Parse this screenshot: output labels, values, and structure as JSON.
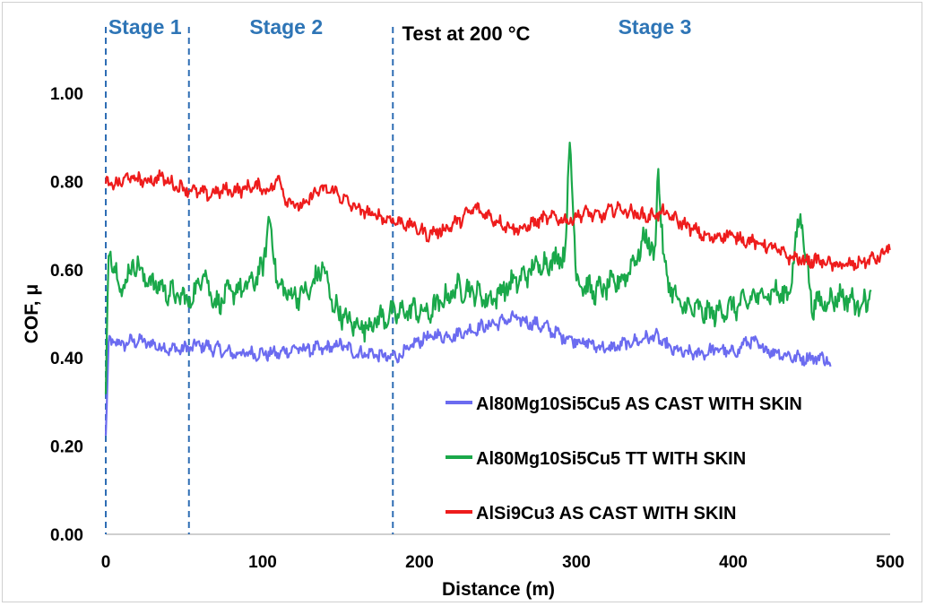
{
  "chart_data": {
    "type": "line",
    "title": "Test at 200 °C",
    "xlabel": "Distance (m)",
    "ylabel": "COF, μ",
    "xlim": [
      0,
      500
    ],
    "ylim": [
      0,
      1.1
    ],
    "x_ticks": [
      0,
      100,
      200,
      300,
      400,
      500
    ],
    "x_tick_labels": [
      "0",
      "100",
      "200",
      "300",
      "400",
      "500"
    ],
    "y_ticks": [
      0,
      0.2,
      0.4,
      0.6,
      0.8,
      1.0
    ],
    "y_tick_labels": [
      "0.00",
      "0.20",
      "0.40",
      "0.60",
      "0.80",
      "1.00"
    ],
    "grid": false,
    "legend_position": "bottom-right",
    "stage_lines": [
      0,
      53,
      183
    ],
    "stages": [
      {
        "label": "Stage 1",
        "x": 25
      },
      {
        "label": "Stage 2",
        "x": 115
      },
      {
        "label": "Stage 3",
        "x": 350
      }
    ],
    "series": [
      {
        "name": "Al80Mg10Si5Cu5 AS CAST WITH SKIN",
        "color": "#6b6bf0",
        "x": [
          0,
          2,
          10,
          20,
          30,
          40,
          50,
          60,
          70,
          80,
          90,
          100,
          110,
          120,
          130,
          140,
          150,
          160,
          170,
          180,
          190,
          200,
          210,
          220,
          230,
          240,
          250,
          260,
          270,
          280,
          290,
          300,
          310,
          320,
          330,
          340,
          350,
          360,
          370,
          380,
          390,
          400,
          410,
          420,
          430,
          440,
          450,
          460,
          462
        ],
        "y": [
          0.22,
          0.44,
          0.43,
          0.44,
          0.43,
          0.42,
          0.42,
          0.43,
          0.42,
          0.41,
          0.41,
          0.41,
          0.41,
          0.42,
          0.42,
          0.42,
          0.43,
          0.41,
          0.41,
          0.4,
          0.41,
          0.44,
          0.45,
          0.45,
          0.46,
          0.47,
          0.48,
          0.49,
          0.48,
          0.47,
          0.45,
          0.44,
          0.43,
          0.42,
          0.43,
          0.44,
          0.45,
          0.42,
          0.41,
          0.41,
          0.42,
          0.41,
          0.44,
          0.42,
          0.41,
          0.4,
          0.4,
          0.4,
          0.37
        ]
      },
      {
        "name": "Al80Mg10Si5Cu5 TT WITH SKIN",
        "color": "#1aa84a",
        "x": [
          0,
          2,
          10,
          18,
          25,
          35,
          45,
          55,
          62,
          70,
          80,
          90,
          100,
          104,
          110,
          120,
          130,
          138,
          145,
          155,
          165,
          175,
          185,
          195,
          205,
          215,
          225,
          235,
          245,
          255,
          265,
          275,
          285,
          293,
          296,
          300,
          310,
          320,
          330,
          340,
          345,
          350,
          352,
          356,
          365,
          375,
          385,
          395,
          405,
          415,
          425,
          435,
          443,
          450,
          460,
          470,
          480,
          488
        ],
        "y": [
          0.3,
          0.66,
          0.55,
          0.62,
          0.58,
          0.56,
          0.54,
          0.53,
          0.6,
          0.52,
          0.55,
          0.56,
          0.6,
          0.72,
          0.56,
          0.54,
          0.55,
          0.61,
          0.52,
          0.48,
          0.47,
          0.49,
          0.5,
          0.51,
          0.5,
          0.53,
          0.56,
          0.55,
          0.53,
          0.56,
          0.58,
          0.61,
          0.62,
          0.64,
          0.9,
          0.58,
          0.55,
          0.56,
          0.58,
          0.64,
          0.68,
          0.62,
          0.84,
          0.6,
          0.52,
          0.51,
          0.5,
          0.51,
          0.52,
          0.54,
          0.55,
          0.54,
          0.73,
          0.52,
          0.53,
          0.54,
          0.52,
          0.54
        ]
      },
      {
        "name": "AlSi9Cu3 AS CAST WITH SKIN",
        "color": "#ee1c1c",
        "x": [
          0,
          5,
          15,
          25,
          35,
          45,
          55,
          65,
          75,
          85,
          95,
          105,
          110,
          115,
          125,
          135,
          145,
          155,
          165,
          175,
          185,
          195,
          205,
          215,
          225,
          235,
          245,
          255,
          265,
          275,
          285,
          295,
          305,
          315,
          325,
          335,
          345,
          355,
          365,
          375,
          385,
          395,
          405,
          415,
          425,
          435,
          445,
          455,
          465,
          475,
          485,
          495,
          500
        ],
        "y": [
          0.8,
          0.79,
          0.81,
          0.8,
          0.81,
          0.79,
          0.78,
          0.77,
          0.78,
          0.78,
          0.79,
          0.78,
          0.81,
          0.76,
          0.74,
          0.78,
          0.78,
          0.75,
          0.73,
          0.72,
          0.71,
          0.7,
          0.68,
          0.69,
          0.71,
          0.74,
          0.72,
          0.7,
          0.69,
          0.71,
          0.72,
          0.71,
          0.73,
          0.72,
          0.74,
          0.73,
          0.72,
          0.73,
          0.71,
          0.69,
          0.67,
          0.68,
          0.67,
          0.66,
          0.65,
          0.63,
          0.62,
          0.62,
          0.61,
          0.61,
          0.62,
          0.63,
          0.66
        ]
      }
    ]
  }
}
